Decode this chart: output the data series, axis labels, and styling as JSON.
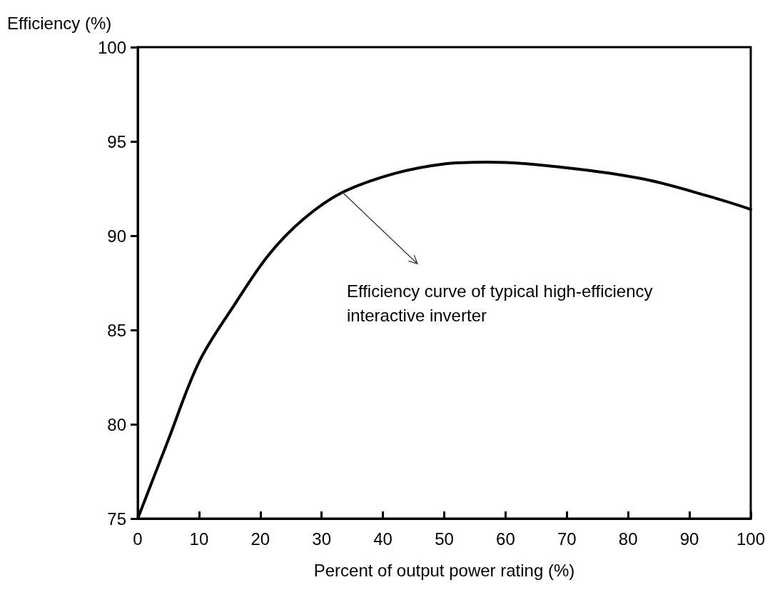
{
  "chart_data": {
    "type": "line",
    "ylabel": "Efficiency (%)",
    "xlabel": "Percent of output power rating (%)",
    "x": [
      0,
      4.9,
      10,
      15.7,
      21.4,
      27.1,
      33.4,
      41.9,
      49.8,
      57,
      70,
      82.6,
      93.1,
      100
    ],
    "series": [
      {
        "color": "#000000",
        "values": [
          75,
          79.1,
          83.3,
          86.3,
          89,
          90.9,
          92.3,
          93.3,
          93.8,
          93.9,
          93.6,
          93,
          92.1,
          91.4
        ]
      }
    ],
    "xlim": [
      0,
      100
    ],
    "xticks": [
      0,
      10,
      20,
      30,
      40,
      50,
      60,
      70,
      80,
      90,
      100
    ],
    "ylim": [
      75,
      100
    ],
    "yticks": [
      75,
      80,
      85,
      90,
      95,
      100
    ],
    "grid": false,
    "marker": "none",
    "line_style": "solid",
    "annotations": [
      {
        "text": "Efficiency curve of typical high-efficiency interactive inverter",
        "x": 33.4,
        "y": 92.3
      }
    ]
  }
}
